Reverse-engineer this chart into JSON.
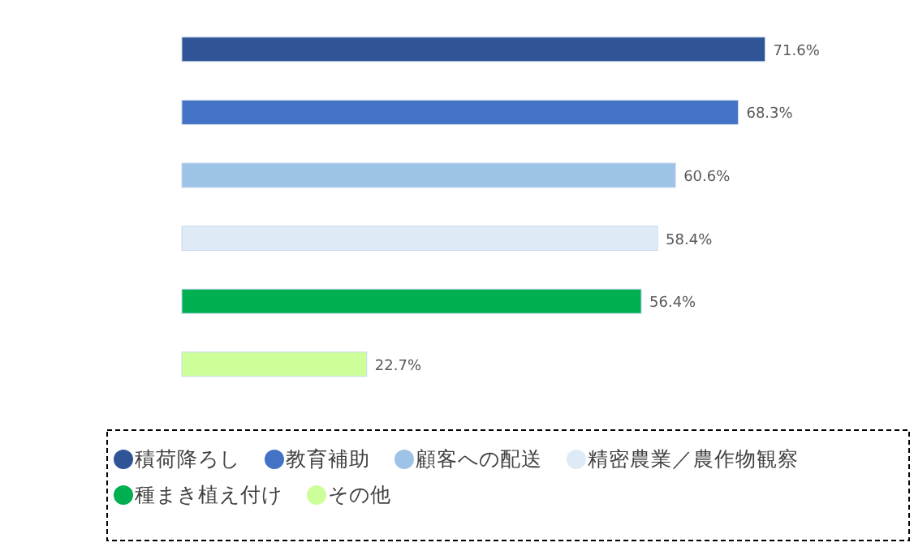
{
  "chart_data": {
    "type": "bar",
    "orientation": "horizontal",
    "stacked": true,
    "legend": "bottom",
    "categories": [
      null,
      null,
      null,
      null,
      null,
      null
    ],
    "series": [
      {
        "name": "積荷降ろし",
        "color": "#2f5597",
        "values": [
          71.6,
          null,
          null,
          null,
          null,
          null
        ],
        "value_labels": [
          "71.6%",
          null,
          null,
          null,
          null,
          null
        ]
      },
      {
        "name": "教育補助",
        "color": "#4472c4",
        "values": [
          null,
          68.3,
          null,
          null,
          null,
          null
        ],
        "value_labels": [
          null,
          "68.3%",
          null,
          null,
          null,
          null
        ]
      },
      {
        "name": "顧客への配送",
        "color": "#9dc3e6",
        "values": [
          null,
          null,
          60.6,
          null,
          null,
          null
        ],
        "value_labels": [
          null,
          null,
          "60.6%",
          null,
          null,
          null
        ]
      },
      {
        "name": "精密農業／農作物観察",
        "color": "#deebf7",
        "values": [
          null,
          null,
          null,
          58.4,
          null,
          null
        ],
        "value_labels": [
          null,
          null,
          null,
          "58.4%",
          null,
          null
        ]
      },
      {
        "name": "種まき植え付け",
        "color": "#00b050",
        "values": [
          null,
          null,
          null,
          null,
          56.4,
          null
        ],
        "value_labels": [
          null,
          null,
          null,
          null,
          "56.4%",
          null
        ]
      },
      {
        "name": "その他",
        "color": "#ccff99",
        "values": [
          null,
          null,
          null,
          null,
          null,
          22.7
        ],
        "value_labels": [
          null,
          null,
          null,
          null,
          null,
          "22.7%"
        ]
      }
    ]
  }
}
